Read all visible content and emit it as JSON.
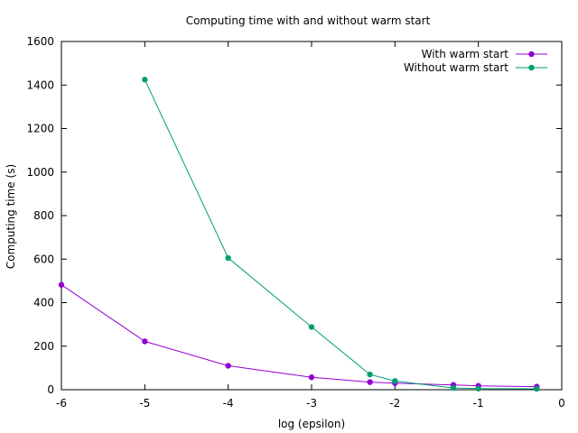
{
  "chart_data": {
    "type": "line",
    "title": "Computing time with and without warm start",
    "xlabel": "log (epsilon)",
    "ylabel": "Computing time (s)",
    "xlim": [
      -6,
      0
    ],
    "ylim": [
      0,
      1600
    ],
    "xticks": [
      -6,
      -5,
      -4,
      -3,
      -2,
      -1,
      0
    ],
    "yticks": [
      0,
      200,
      400,
      600,
      800,
      1000,
      1200,
      1400,
      1600
    ],
    "grid": false,
    "legend_position": "top-right",
    "series": [
      {
        "name": "With warm start",
        "color": "#9400d3",
        "x": [
          -6,
          -5,
          -4,
          -3,
          -2.3,
          -2,
          -1.3,
          -1,
          -0.3
        ],
        "y": [
          482,
          222,
          110,
          57,
          35,
          30,
          22,
          18,
          14
        ]
      },
      {
        "name": "Without warm start",
        "color": "#009e73",
        "x": [
          -5,
          -4,
          -3,
          -2.3,
          -2,
          -1.3,
          -1,
          -0.3
        ],
        "y": [
          1425,
          605,
          288,
          70,
          40,
          8,
          5,
          4
        ]
      }
    ]
  }
}
